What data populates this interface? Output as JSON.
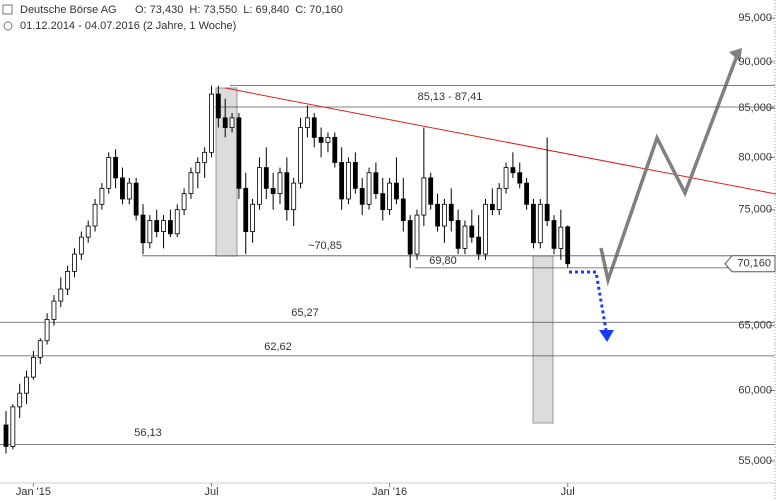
{
  "chart_data": {
    "type": "candlestick",
    "header": {
      "title": "Deutsche Börse AG",
      "ohlc": "O: 73,430  H: 73,550  L: 69,840  C: 70,160",
      "period": "01.12.2014 - 04.07.2016 (2 Jahre, 1 Woche)"
    },
    "categories": [
      null,
      null,
      null,
      null,
      "Jan '15",
      null,
      null,
      null,
      null,
      null,
      null,
      null,
      null,
      null,
      null,
      null,
      null,
      null,
      null,
      null,
      null,
      null,
      null,
      null,
      null,
      null,
      null,
      null,
      null,
      null,
      "Jul",
      null,
      null,
      null,
      null,
      null,
      null,
      null,
      null,
      null,
      null,
      null,
      null,
      null,
      null,
      null,
      null,
      null,
      null,
      null,
      null,
      null,
      null,
      null,
      null,
      null,
      "Jan '16",
      null,
      null,
      null,
      null,
      null,
      null,
      null,
      null,
      null,
      null,
      null,
      null,
      null,
      null,
      null,
      null,
      null,
      null,
      null,
      null,
      null,
      null,
      null,
      null,
      null,
      "Jul"
    ],
    "open": [
      57.5,
      56,
      58.8,
      59.8,
      61,
      62.5,
      63.8,
      65.5,
      67,
      68,
      69.5,
      71,
      72.5,
      73.5,
      75.5,
      77,
      80,
      78,
      76,
      77.5,
      74.5,
      72,
      74,
      73,
      74,
      72.8,
      75,
      76.5,
      78.5,
      79.5,
      80.5,
      86.5,
      84,
      83,
      84,
      77,
      73,
      75.5,
      79,
      77,
      76.5,
      78.5,
      75,
      77.5,
      83,
      84,
      82,
      81.5,
      82,
      79.5,
      76,
      79.5,
      77,
      75.5,
      78.5,
      76.5,
      75,
      77.5,
      76,
      74,
      71,
      74.5,
      78,
      75.5,
      73.5,
      75.5,
      74,
      71.5,
      73.5,
      72.5,
      71,
      75.5,
      75,
      77,
      79,
      78.5,
      77.5,
      75.5,
      72,
      75.5,
      74,
      71.5,
      73.43
    ],
    "high": [
      58.5,
      59,
      60.5,
      61.5,
      63,
      64,
      66,
      67.5,
      69,
      70,
      71.5,
      73,
      74,
      76,
      77.5,
      80.5,
      80.8,
      79,
      78,
      78,
      75.5,
      74.5,
      75,
      74.5,
      75,
      75.5,
      77,
      79,
      80,
      81,
      87.4,
      87.4,
      86,
      84.5,
      84.5,
      78.5,
      76,
      80,
      81,
      78.5,
      79,
      80,
      78,
      84,
      85.3,
      84.5,
      83,
      82.5,
      82.5,
      81,
      80,
      80.5,
      78,
      79,
      79.5,
      78,
      78,
      80,
      78,
      74.5,
      75,
      83,
      78.5,
      76.5,
      76,
      77,
      75,
      74,
      75,
      74.5,
      76,
      77,
      77.5,
      79.5,
      80.5,
      79.5,
      78,
      76,
      76,
      82,
      74.5,
      75,
      73.55
    ],
    "low": [
      55.5,
      55.8,
      58,
      59,
      60.8,
      62,
      63.5,
      65,
      66.5,
      67.5,
      69,
      70.5,
      72,
      73,
      75,
      76.5,
      77,
      75.5,
      75.5,
      74,
      71,
      71.5,
      72.5,
      71.5,
      72.5,
      72.5,
      74.5,
      76,
      77,
      78,
      80,
      83,
      82,
      82.5,
      76,
      71,
      72,
      75,
      76,
      75,
      75.5,
      74,
      73.5,
      77,
      82,
      81,
      80,
      80.5,
      79,
      75,
      75.5,
      76.5,
      74.5,
      75,
      76,
      74,
      74.5,
      75.5,
      73,
      69.8,
      70.5,
      73.5,
      75,
      73,
      72,
      73,
      71,
      71,
      72,
      70.5,
      70.5,
      74.5,
      74.5,
      76.5,
      78,
      77,
      75,
      71.5,
      71.5,
      73.5,
      71,
      70.5,
      69.84
    ],
    "close": [
      56,
      58.8,
      59.8,
      61,
      62.5,
      63.8,
      65.5,
      67,
      68,
      69.5,
      71,
      72.5,
      73.5,
      75.5,
      77,
      80,
      78,
      76,
      77.5,
      74.5,
      72,
      74,
      73,
      74,
      72.8,
      75,
      76.5,
      78.5,
      79.5,
      80.5,
      86.5,
      84,
      83,
      84,
      77,
      73,
      75.5,
      79,
      77,
      76.5,
      78.5,
      75,
      77.5,
      83,
      84,
      82,
      81.5,
      82,
      79.5,
      76,
      79.5,
      77,
      75.5,
      78.5,
      76.5,
      75,
      77.5,
      76,
      74,
      71,
      74.5,
      78,
      75.5,
      73.5,
      75.5,
      74,
      71.5,
      73.5,
      72.5,
      71,
      75.5,
      75,
      77,
      79,
      78.5,
      77.5,
      75.5,
      72,
      75.5,
      74,
      71.5,
      73.4,
      70.16
    ],
    "up_color": "#ffffff",
    "down_color": "#000000",
    "ylim": [
      52.35,
      97.15
    ],
    "log_scale": true,
    "yticks": [
      {
        "value": 55,
        "label": "55,000"
      },
      {
        "value": 60,
        "label": "60,000"
      },
      {
        "value": 65,
        "label": "65,000"
      },
      {
        "value": 75,
        "label": "75,000"
      },
      {
        "value": 80,
        "label": "80,000"
      },
      {
        "value": 85,
        "label": "85,000"
      },
      {
        "value": 90,
        "label": "90,000"
      },
      {
        "value": 95,
        "label": "95,000"
      }
    ],
    "levels": [
      {
        "label": "85,13 - 87,41",
        "values": [
          85.13,
          87.41
        ]
      },
      {
        "label": "~70,85",
        "values": [
          70.85
        ]
      },
      {
        "label": "69,80",
        "values": [
          69.8
        ]
      },
      {
        "label": "65,27",
        "values": [
          65.27
        ]
      },
      {
        "label": "62,62",
        "values": [
          62.62
        ]
      },
      {
        "label": "56,13",
        "values": [
          56.13
        ]
      }
    ],
    "level_color": "#555555",
    "last_price": {
      "value": 70.16,
      "label": "70,160"
    }
  }
}
